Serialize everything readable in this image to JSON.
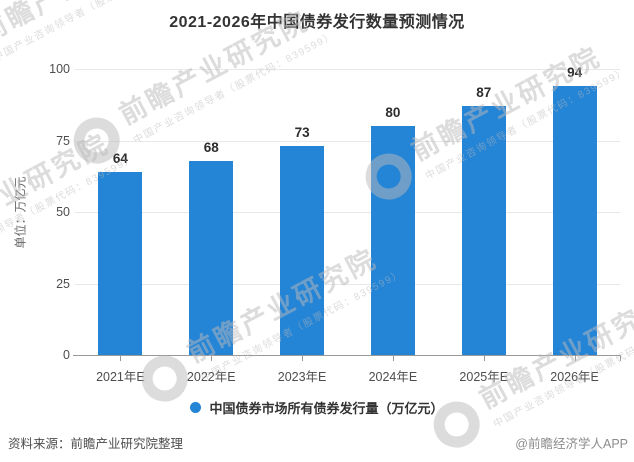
{
  "title": "2021-2026年中国债券发行数量预测情况",
  "chart_data": {
    "type": "bar",
    "title": "2021-2026年中国债券发行数量预测情况",
    "categories": [
      "2021年E",
      "2022年E",
      "2023年E",
      "2024年E",
      "2025年E",
      "2026年E"
    ],
    "series": [
      {
        "name": "中国债券市场所有债券发行量（万亿元）",
        "values": [
          64,
          68,
          73,
          80,
          87,
          94
        ],
        "color": "#2484d6"
      }
    ],
    "xlabel": "",
    "ylabel": "单位：万亿元",
    "ylim": [
      0,
      100
    ],
    "y_ticks": [
      0,
      25,
      50,
      75,
      100
    ],
    "grid": "horizontal",
    "legend_position": "bottom",
    "data_labels_shown": true
  },
  "y_axis": {
    "unit_label": "单位：万亿元"
  },
  "legend": {
    "label": "中国债券市场所有债券发行量（万亿元）",
    "marker": "circle-icon",
    "marker_color": "#2484d6"
  },
  "footer": {
    "source": "资料来源：前瞻产业研究院整理",
    "credit": "@前瞻经济学人APP"
  },
  "watermark": {
    "text": "前瞻产业研究院",
    "subtext": "中国产业咨询领导者（股票代码：839599）"
  },
  "colors": {
    "bar": "#2484d6",
    "title_text": "#333333",
    "axis_label": "#4d4d4d",
    "gridline": "#e8e8e8",
    "axis_line": "#999999",
    "credit_text": "#8c8c8c",
    "background": "#ffffff"
  }
}
